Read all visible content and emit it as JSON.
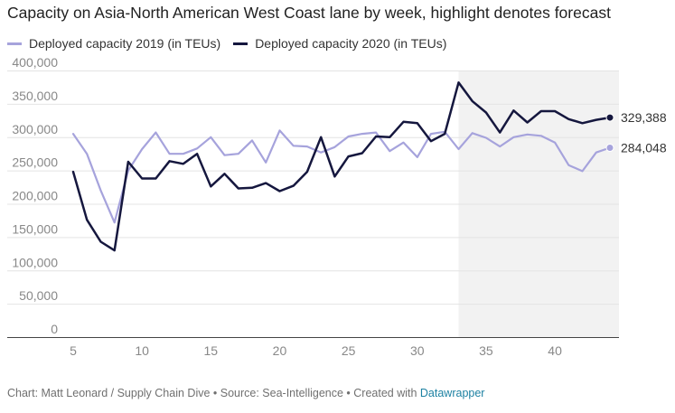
{
  "chart_data": {
    "type": "line",
    "title": "Capacity on Asia-North American West Coast lane by week, highlight denotes forecast",
    "xlabel": "",
    "ylabel": "",
    "xlim": [
      5,
      44
    ],
    "ylim": [
      0,
      400000
    ],
    "x_ticks": [
      "5",
      "10",
      "15",
      "20",
      "25",
      "30",
      "35",
      "40"
    ],
    "y_ticks": [
      "0",
      "50,000",
      "100,000",
      "150,000",
      "200,000",
      "250,000",
      "300,000",
      "350,000",
      "400,000"
    ],
    "forecast_range": [
      33,
      44
    ],
    "grid": "horizontal",
    "legend_position": "top-left",
    "x": [
      5,
      6,
      7,
      8,
      9,
      10,
      11,
      12,
      13,
      14,
      15,
      16,
      17,
      18,
      19,
      20,
      21,
      22,
      23,
      24,
      25,
      26,
      27,
      28,
      29,
      30,
      31,
      32,
      33,
      34,
      35,
      36,
      37,
      38,
      39,
      40,
      41,
      42,
      43,
      44
    ],
    "series": [
      {
        "name": "Deployed capacity 2019 (in TEUs)",
        "color": "#a6a3dc",
        "end_label": "284,048",
        "values": [
          305000,
          275000,
          220000,
          172000,
          250000,
          282000,
          307000,
          275000,
          275000,
          283000,
          300000,
          273000,
          275000,
          295000,
          262000,
          310000,
          287000,
          286000,
          277000,
          285000,
          301000,
          305000,
          307000,
          279000,
          292000,
          270000,
          305000,
          308000,
          282000,
          306000,
          299000,
          286000,
          300000,
          304000,
          302000,
          292000,
          258000,
          249000,
          277000,
          284048
        ]
      },
      {
        "name": "Deployed capacity 2020 (in TEUs)",
        "color": "#15173e",
        "end_label": "329,388",
        "values": [
          248000,
          176000,
          143000,
          130000,
          263000,
          238000,
          238000,
          264000,
          260000,
          275000,
          226000,
          245000,
          223000,
          224000,
          231000,
          219000,
          227000,
          248000,
          300000,
          241000,
          271000,
          276000,
          301000,
          300000,
          323000,
          321000,
          294000,
          305000,
          382000,
          354000,
          337000,
          307000,
          340000,
          322000,
          339000,
          339000,
          327000,
          321000,
          326000,
          329388
        ]
      }
    ]
  },
  "footer": {
    "text": "Chart: Matt Leonard / Supply Chain Dive • Source: Sea-Intelligence • Created with ",
    "link": "Datawrapper"
  }
}
